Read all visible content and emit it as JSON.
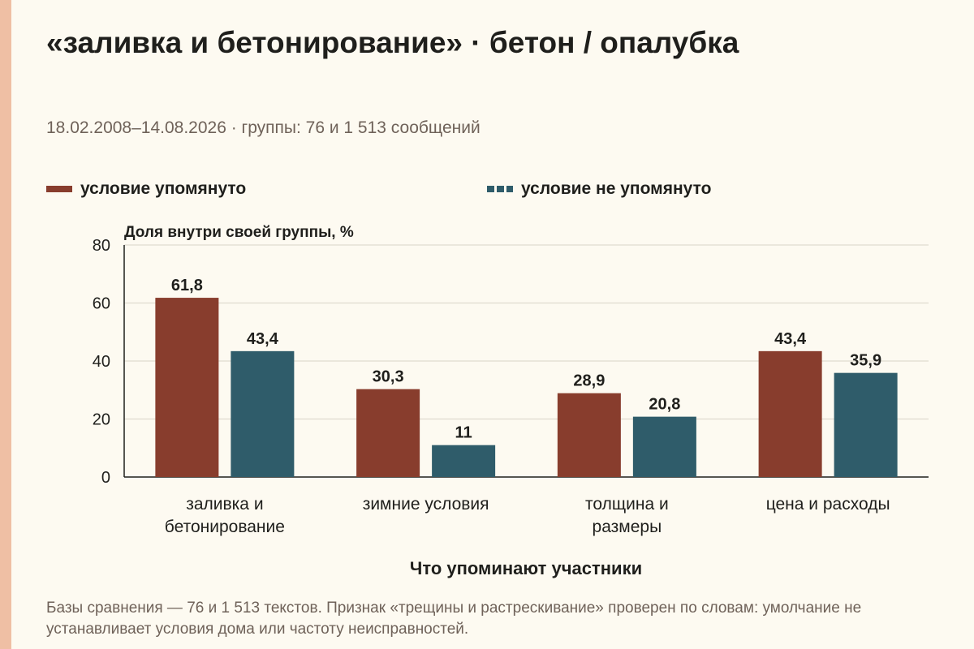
{
  "page": {
    "title": "«заливка и бетонирование» · бетон / опалубка",
    "subtitle": "18.02.2008–14.08.2026 · группы: 76 и 1 513 сообщений",
    "footnote": "Базы сравнения — 76 и 1 513 текстов. Признак «трещины и растрескивание» проверен по словам: умолчание не устанавливает условия дома или частоту неисправностей."
  },
  "colors": {
    "background": "#fdfaf1",
    "accent_strip": "#efbfa4",
    "series_1": "#883d2d",
    "series_2": "#2f5c6a"
  },
  "chart_data": {
    "type": "bar",
    "title": "«заливка и бетонирование» · бетон / опалубка",
    "xlabel": "Что упоминают участники",
    "ylabel": "Доля внутри своей группы, %",
    "ylim": [
      0,
      80
    ],
    "yticks": [
      0,
      20,
      40,
      60,
      80
    ],
    "grid": true,
    "legend_position": "top",
    "categories": [
      [
        "заливка и",
        "бетонирование"
      ],
      [
        "зимние условия"
      ],
      [
        "толщина и",
        "размеры"
      ],
      [
        "цена и расходы"
      ]
    ],
    "series": [
      {
        "name": "условие упомянуто",
        "color": "#883d2d",
        "style": "solid",
        "values": [
          61.8,
          30.3,
          28.9,
          43.4
        ],
        "labels": [
          "61,8",
          "30,3",
          "28,9",
          "43,4"
        ]
      },
      {
        "name": "условие не упомянуто",
        "color": "#2f5c6a",
        "style": "dashed",
        "values": [
          43.4,
          11,
          20.8,
          35.9
        ],
        "labels": [
          "43,4",
          "11",
          "20,8",
          "35,9"
        ]
      }
    ]
  }
}
